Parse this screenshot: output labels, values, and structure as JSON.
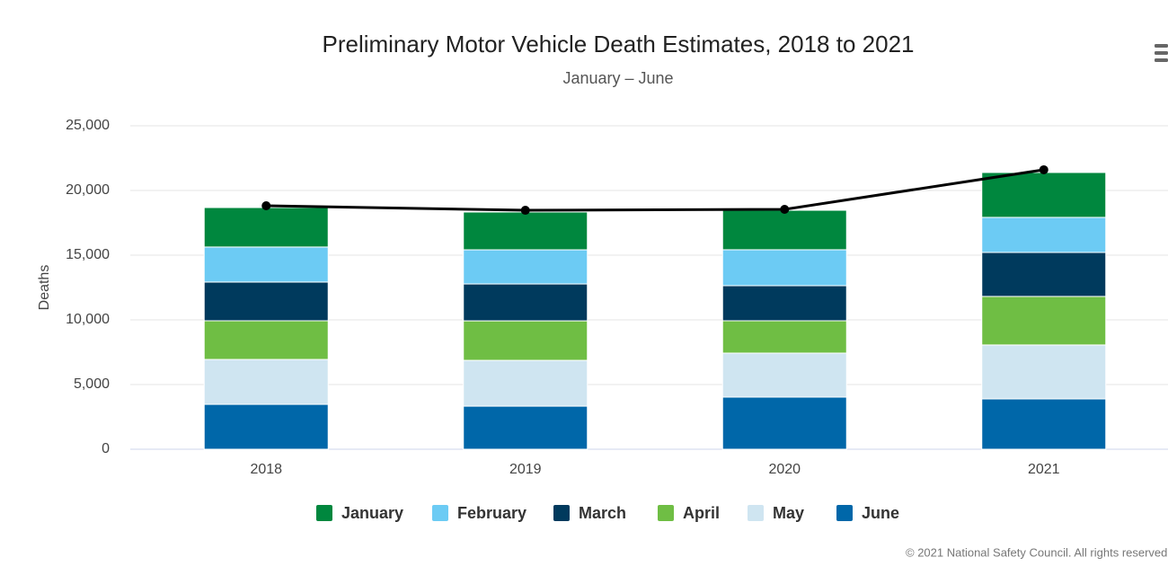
{
  "chart_data": {
    "type": "stacked-bar",
    "title": "Preliminary Motor Vehicle Death Estimates, 2018 to 2021",
    "subtitle": "January – June",
    "y_label": "Deaths",
    "credit": "© 2021 National Safety Council. All rights reserved.",
    "categories": [
      "2018",
      "2019",
      "2020",
      "2021"
    ],
    "series": [
      {
        "name": "January",
        "color": "#00873e",
        "values": [
          3050,
          2920,
          3050,
          3470
        ]
      },
      {
        "name": "February",
        "color": "#6ccbf4",
        "values": [
          2710,
          2640,
          2780,
          2710
        ]
      },
      {
        "name": "March",
        "color": "#003a5d",
        "values": [
          2990,
          2850,
          2710,
          3400
        ]
      },
      {
        "name": "April",
        "color": "#6fbe44",
        "values": [
          2990,
          3055,
          2500,
          3750
        ]
      },
      {
        "name": "May",
        "color": "#cfe5f1",
        "values": [
          3470,
          3540,
          3400,
          4170
        ]
      },
      {
        "name": "June",
        "color": "#0067a9",
        "values": [
          3470,
          3330,
          4030,
          3890
        ]
      }
    ],
    "line": {
      "color": "#000000",
      "values": [
        18820,
        18470,
        18540,
        21600
      ]
    },
    "ylim": [
      0,
      25000
    ],
    "yticks": [
      0,
      {
        "value": 5000,
        "label": "5,000"
      },
      {
        "value": 10000,
        "label": "10,000"
      },
      {
        "value": 15000,
        "label": "15,000"
      },
      {
        "value": 20000,
        "label": "20,000"
      },
      {
        "value": 25000,
        "label": "25,000"
      }
    ],
    "grid": true
  }
}
